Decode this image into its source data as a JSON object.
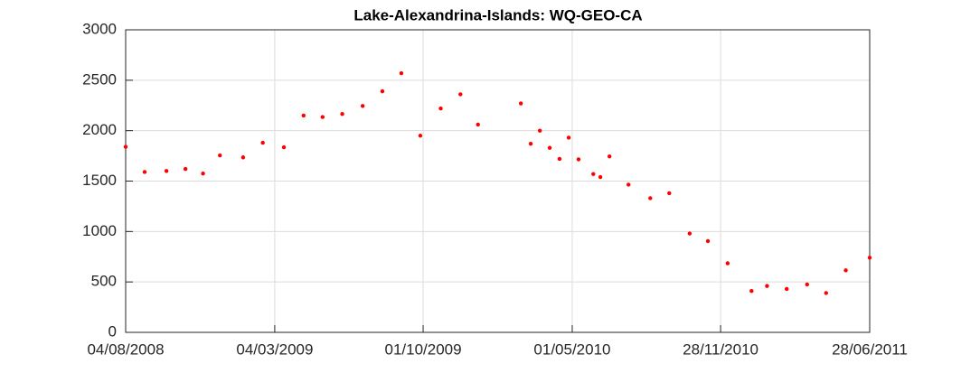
{
  "chart_data": {
    "type": "scatter",
    "title": "Lake-Alexandrina-Islands: WQ-GEO-CA",
    "x": [
      "04/08/2008",
      "31/08/2008",
      "01/10/2008",
      "28/10/2008",
      "22/11/2008",
      "16/12/2008",
      "18/01/2009",
      "15/02/2009",
      "17/03/2009",
      "14/04/2009",
      "11/05/2009",
      "08/06/2009",
      "07/07/2009",
      "04/08/2009",
      "31/08/2009",
      "27/09/2009",
      "26/10/2009",
      "23/11/2009",
      "18/12/2009",
      "17/02/2010",
      "03/03/2010",
      "16/03/2010",
      "30/03/2010",
      "13/04/2010",
      "26/04/2010",
      "10/05/2010",
      "31/05/2010",
      "10/06/2010",
      "23/06/2010",
      "20/07/2010",
      "20/08/2010",
      "16/09/2010",
      "15/10/2010",
      "10/11/2010",
      "08/12/2010",
      "11/01/2011",
      "02/02/2011",
      "02/03/2011",
      "31/03/2011",
      "27/04/2011",
      "25/05/2011",
      "28/06/2011"
    ],
    "values": [
      1840,
      1590,
      1600,
      1620,
      1575,
      1755,
      1735,
      1880,
      1835,
      2150,
      2135,
      2165,
      2245,
      2390,
      2570,
      1950,
      2220,
      2360,
      2060,
      2270,
      1870,
      2000,
      1830,
      1720,
      1930,
      1715,
      1570,
      1540,
      1745,
      1465,
      1330,
      1380,
      980,
      905,
      685,
      410,
      460,
      430,
      475,
      390,
      615,
      740
    ],
    "color": "#ff0000",
    "xlim": [
      "04/08/2008",
      "28/06/2011"
    ],
    "xticks": [
      "04/08/2008",
      "04/03/2009",
      "01/10/2009",
      "01/05/2010",
      "28/11/2010",
      "28/06/2011"
    ],
    "ylim": [
      0,
      3000
    ],
    "yticks": [
      0,
      500,
      1000,
      1500,
      2000,
      2500,
      3000
    ],
    "grid": true
  }
}
